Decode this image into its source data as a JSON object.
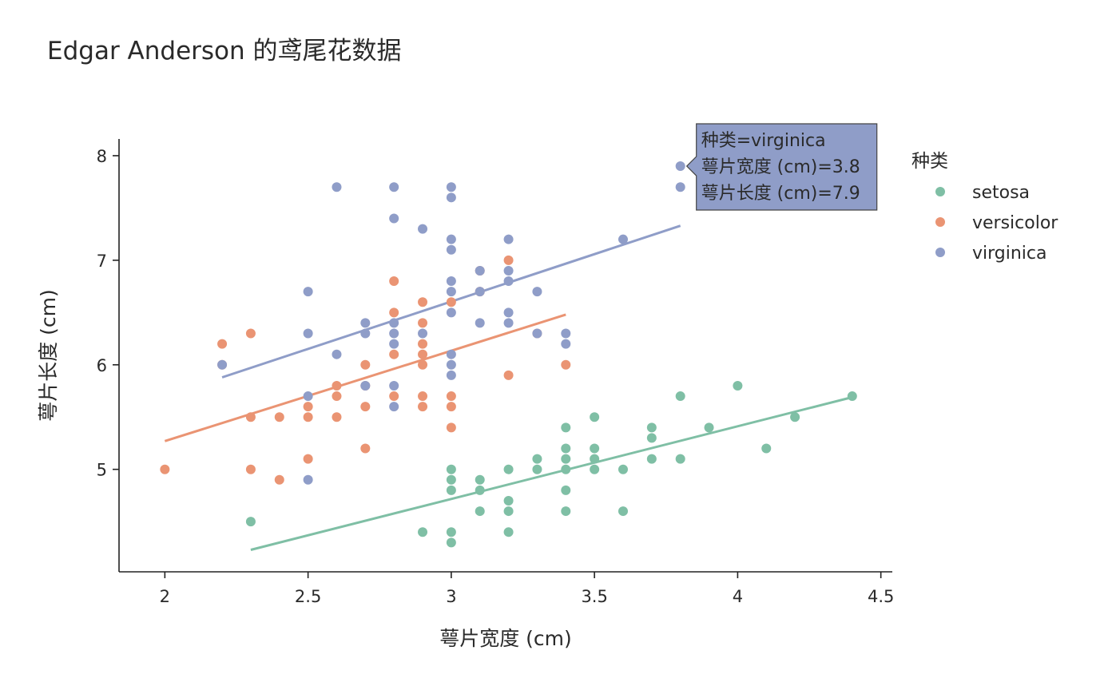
{
  "title": "Edgar Anderson 的鸢尾花数据",
  "chart_data": {
    "type": "scatter",
    "title": "Edgar Anderson 的鸢尾花数据",
    "xlabel": "萼片宽度 (cm)",
    "ylabel": "萼片长度 (cm)",
    "xlim": [
      1.84,
      4.54
    ],
    "ylim": [
      4.02,
      8.16
    ],
    "xticks": [
      2,
      2.5,
      3,
      3.5,
      4,
      4.5
    ],
    "xtick_labels": [
      "2",
      "2.5",
      "3",
      "3.5",
      "4",
      "4.5"
    ],
    "yticks": [
      5,
      6,
      7,
      8
    ],
    "ytick_labels": [
      "5",
      "6",
      "7",
      "8"
    ],
    "grid": false,
    "legend": {
      "title": "种类",
      "placement": "right"
    },
    "series": [
      {
        "name": "setosa",
        "color": "#7fbfa5",
        "points": [
          [
            2.3,
            4.5
          ],
          [
            2.9,
            4.4
          ],
          [
            3.0,
            4.4
          ],
          [
            3.0,
            4.3
          ],
          [
            3.0,
            4.8
          ],
          [
            3.0,
            4.9
          ],
          [
            3.0,
            5.0
          ],
          [
            3.1,
            4.9
          ],
          [
            3.1,
            4.8
          ],
          [
            3.1,
            4.6
          ],
          [
            3.2,
            5.0
          ],
          [
            3.2,
            4.7
          ],
          [
            3.2,
            4.6
          ],
          [
            3.2,
            4.4
          ],
          [
            3.3,
            5.1
          ],
          [
            3.3,
            5.0
          ],
          [
            3.4,
            5.4
          ],
          [
            3.4,
            5.2
          ],
          [
            3.4,
            5.1
          ],
          [
            3.4,
            5.0
          ],
          [
            3.4,
            4.8
          ],
          [
            3.4,
            4.6
          ],
          [
            3.5,
            5.5
          ],
          [
            3.5,
            5.2
          ],
          [
            3.5,
            5.1
          ],
          [
            3.5,
            5.0
          ],
          [
            3.6,
            5.0
          ],
          [
            3.6,
            4.6
          ],
          [
            3.7,
            5.4
          ],
          [
            3.7,
            5.3
          ],
          [
            3.7,
            5.1
          ],
          [
            3.8,
            5.7
          ],
          [
            3.8,
            5.1
          ],
          [
            3.9,
            5.4
          ],
          [
            4.0,
            5.8
          ],
          [
            4.1,
            5.2
          ],
          [
            4.2,
            5.5
          ],
          [
            4.4,
            5.7
          ]
        ],
        "trendline": [
          [
            2.3,
            4.23
          ],
          [
            4.4,
            5.69
          ]
        ]
      },
      {
        "name": "versicolor",
        "color": "#ea9473",
        "points": [
          [
            2.0,
            5.0
          ],
          [
            2.2,
            6.2
          ],
          [
            2.2,
            6.0
          ],
          [
            2.3,
            6.3
          ],
          [
            2.3,
            5.5
          ],
          [
            2.3,
            5.0
          ],
          [
            2.4,
            5.5
          ],
          [
            2.4,
            4.9
          ],
          [
            2.5,
            5.6
          ],
          [
            2.5,
            5.5
          ],
          [
            2.5,
            5.1
          ],
          [
            2.6,
            5.8
          ],
          [
            2.6,
            5.7
          ],
          [
            2.6,
            5.5
          ],
          [
            2.7,
            6.0
          ],
          [
            2.7,
            5.8
          ],
          [
            2.7,
            5.6
          ],
          [
            2.7,
            5.2
          ],
          [
            2.8,
            6.8
          ],
          [
            2.8,
            6.5
          ],
          [
            2.8,
            6.1
          ],
          [
            2.8,
            5.7
          ],
          [
            2.9,
            6.6
          ],
          [
            2.9,
            6.4
          ],
          [
            2.9,
            6.2
          ],
          [
            2.9,
            6.1
          ],
          [
            2.9,
            6.0
          ],
          [
            2.9,
            5.7
          ],
          [
            2.9,
            5.6
          ],
          [
            3.0,
            6.6
          ],
          [
            3.0,
            5.7
          ],
          [
            3.0,
            5.6
          ],
          [
            3.0,
            5.4
          ],
          [
            3.1,
            6.9
          ],
          [
            3.1,
            6.7
          ],
          [
            3.2,
            7.0
          ],
          [
            3.2,
            5.9
          ],
          [
            3.3,
            6.3
          ],
          [
            3.4,
            6.0
          ]
        ],
        "trendline": [
          [
            2.0,
            5.27
          ],
          [
            3.4,
            6.48
          ]
        ]
      },
      {
        "name": "virginica",
        "color": "#8f9dc8",
        "points": [
          [
            2.2,
            6.0
          ],
          [
            2.5,
            6.7
          ],
          [
            2.5,
            6.3
          ],
          [
            2.5,
            5.7
          ],
          [
            2.5,
            4.9
          ],
          [
            2.6,
            7.7
          ],
          [
            2.6,
            6.1
          ],
          [
            2.7,
            6.4
          ],
          [
            2.7,
            6.3
          ],
          [
            2.7,
            5.8
          ],
          [
            2.8,
            7.7
          ],
          [
            2.8,
            7.4
          ],
          [
            2.8,
            6.4
          ],
          [
            2.8,
            6.3
          ],
          [
            2.8,
            6.2
          ],
          [
            2.8,
            5.8
          ],
          [
            2.8,
            5.6
          ],
          [
            2.9,
            7.3
          ],
          [
            2.9,
            6.3
          ],
          [
            3.0,
            7.7
          ],
          [
            3.0,
            7.6
          ],
          [
            3.0,
            7.2
          ],
          [
            3.0,
            7.1
          ],
          [
            3.0,
            6.8
          ],
          [
            3.0,
            6.7
          ],
          [
            3.0,
            6.5
          ],
          [
            3.0,
            6.1
          ],
          [
            3.0,
            6.0
          ],
          [
            3.0,
            5.9
          ],
          [
            3.1,
            6.9
          ],
          [
            3.1,
            6.7
          ],
          [
            3.1,
            6.4
          ],
          [
            3.2,
            7.2
          ],
          [
            3.2,
            6.9
          ],
          [
            3.2,
            6.8
          ],
          [
            3.2,
            6.5
          ],
          [
            3.2,
            6.4
          ],
          [
            3.3,
            6.7
          ],
          [
            3.3,
            6.3
          ],
          [
            3.4,
            6.3
          ],
          [
            3.4,
            6.2
          ],
          [
            3.6,
            7.2
          ],
          [
            3.8,
            7.9
          ],
          [
            3.8,
            7.7
          ]
        ],
        "trendline": [
          [
            2.2,
            5.88
          ],
          [
            3.8,
            7.33
          ]
        ]
      }
    ]
  },
  "tooltip": {
    "lines": [
      "种类=virginica",
      "萼片宽度 (cm)=3.8",
      "萼片长度 (cm)=7.9"
    ],
    "series": "virginica",
    "x": 3.8,
    "y": 7.9,
    "color": "#8f9dc8"
  }
}
